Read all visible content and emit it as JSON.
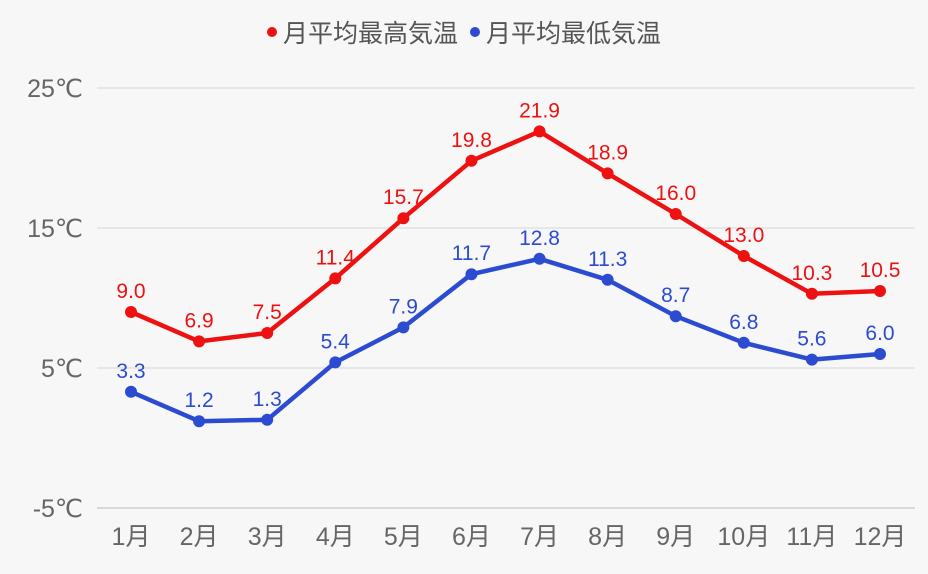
{
  "chart_data": {
    "type": "line",
    "title": "",
    "xlabel": "",
    "ylabel": "",
    "categories": [
      "1月",
      "2月",
      "3月",
      "4月",
      "5月",
      "6月",
      "7月",
      "8月",
      "9月",
      "10月",
      "11月",
      "12月"
    ],
    "series": [
      {
        "name": "月平均最高気温",
        "color": "#ee1111",
        "values": [
          9.0,
          6.9,
          7.5,
          11.4,
          15.7,
          19.8,
          21.9,
          18.9,
          16.0,
          13.0,
          10.3,
          10.5
        ]
      },
      {
        "name": "月平均最低気温",
        "color": "#2b4bd1",
        "values": [
          3.3,
          1.2,
          1.3,
          5.4,
          7.9,
          11.7,
          12.8,
          11.3,
          8.7,
          6.8,
          5.6,
          6.0
        ]
      }
    ],
    "yticks": [
      25,
      15,
      5,
      -5
    ],
    "ytick_labels": [
      "25℃",
      "15℃",
      "5℃",
      "-5℃"
    ],
    "ylim": [
      -5,
      25
    ],
    "grid": true,
    "legend_position": "top",
    "data_labels": true
  },
  "legend": {
    "items": [
      {
        "label": "月平均最高気温",
        "color": "#ee1111"
      },
      {
        "label": "月平均最低気温",
        "color": "#2b4bd1"
      }
    ]
  }
}
